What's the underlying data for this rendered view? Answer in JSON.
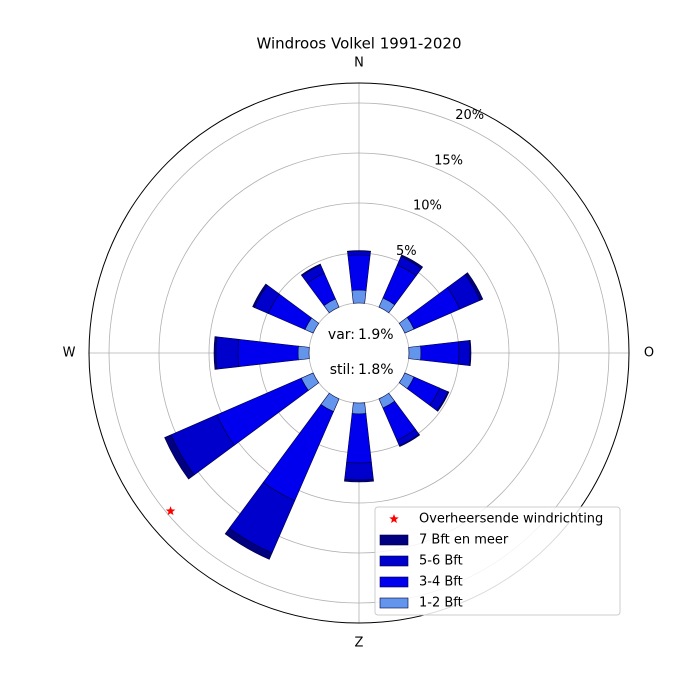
{
  "chart_data": {
    "type": "windrose",
    "title": "Windroos Volkel 1991-2020",
    "x": [
      0,
      30,
      60,
      90,
      120,
      150,
      180,
      210,
      240,
      270,
      300,
      330
    ],
    "xlim": [
      0,
      360
    ],
    "xticks": [
      {
        "value": 0,
        "label": "N"
      },
      {
        "value": 90,
        "label": "O"
      },
      {
        "value": 180,
        "label": "Z"
      },
      {
        "value": 270,
        "label": "W"
      }
    ],
    "ylim": [
      0,
      22
    ],
    "yticks": [
      {
        "value": 5,
        "label": "5%"
      },
      {
        "value": 10,
        "label": "10%"
      },
      {
        "value": 15,
        "label": "15%"
      },
      {
        "value": 20,
        "label": "20%"
      }
    ],
    "grid": true,
    "legend_loc": "lower right",
    "series": [
      {
        "name": "1-2 Bft",
        "color": "#6495ed",
        "values": [
          1.3,
          1.0,
          1.0,
          1.2,
          1.0,
          1.0,
          1.1,
          1.4,
          1.3,
          1.1,
          0.9,
          0.9
        ]
      },
      {
        "name": "3-4 Bft",
        "color": "#0000ee",
        "values": [
          3.5,
          3.6,
          5.0,
          3.8,
          2.8,
          3.5,
          4.9,
          9.7,
          9.2,
          6.0,
          4.0,
          2.8
        ]
      },
      {
        "name": "5-6 Bft",
        "color": "#0000cd",
        "values": [
          0.4,
          0.9,
          2.2,
          1.1,
          0.9,
          0.6,
          1.7,
          5.7,
          5.0,
          2.2,
          1.5,
          0.9
        ]
      },
      {
        "name": "7 Bft en meer",
        "color": "#000080",
        "values": [
          0.05,
          0.2,
          0.3,
          0.1,
          0.1,
          0.1,
          0.2,
          0.7,
          0.7,
          0.2,
          0.2,
          0.1
        ]
      }
    ],
    "marker": {
      "name": "Overheersende windrichting",
      "x": 230,
      "y": 19.6,
      "color": "#ff0000"
    },
    "annotations": [
      {
        "text": "var:",
        "value": 1.9,
        "value_label": "1.9%"
      },
      {
        "text": "stil:",
        "value": 1.8,
        "value_label": "1.8%"
      }
    ]
  }
}
